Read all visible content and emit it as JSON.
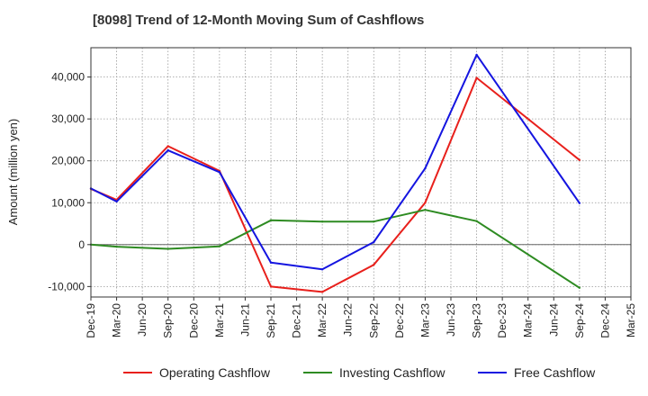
{
  "chart_data": {
    "type": "line",
    "title": "[8098]  Trend of 12-Month Moving Sum of Cashflows",
    "xlabel": "",
    "ylabel": "Amount (million yen)",
    "x": [
      "Dec-19",
      "Mar-20",
      "Jun-20",
      "Sep-20",
      "Dec-20",
      "Mar-21",
      "Jun-21",
      "Sep-21",
      "Dec-21",
      "Mar-22",
      "Jun-22",
      "Sep-22",
      "Dec-22",
      "Mar-23",
      "Jun-23",
      "Sep-23",
      "Dec-23",
      "Mar-24",
      "Jun-24",
      "Sep-24",
      "Dec-24",
      "Mar-25"
    ],
    "ylim": [
      -12500,
      47000
    ],
    "yticks": [
      -10000,
      0,
      10000,
      20000,
      30000,
      40000
    ],
    "ytick_labels": [
      "-10,000",
      "0",
      "10,000",
      "20,000",
      "30,000",
      "40,000"
    ],
    "grid": true,
    "legend_position": "bottom",
    "series": [
      {
        "name": "Operating Cashflow",
        "color": "#e8201c",
        "values": [
          13300,
          10700,
          null,
          23500,
          null,
          17600,
          null,
          -10000,
          null,
          -11300,
          null,
          -4800,
          null,
          10000,
          null,
          39800,
          null,
          null,
          null,
          20200,
          null,
          null
        ]
      },
      {
        "name": "Investing Cashflow",
        "color": "#2e8b22",
        "values": [
          0,
          -500,
          null,
          -1000,
          null,
          -400,
          null,
          5800,
          null,
          5500,
          null,
          5500,
          null,
          8300,
          null,
          5600,
          null,
          null,
          null,
          -10300,
          null,
          null
        ]
      },
      {
        "name": "Free Cashflow",
        "color": "#1515e0",
        "values": [
          13400,
          10300,
          null,
          22500,
          null,
          17300,
          null,
          -4300,
          null,
          -5900,
          null,
          600,
          null,
          18200,
          null,
          45300,
          null,
          null,
          null,
          9900,
          null,
          null
        ]
      }
    ]
  }
}
